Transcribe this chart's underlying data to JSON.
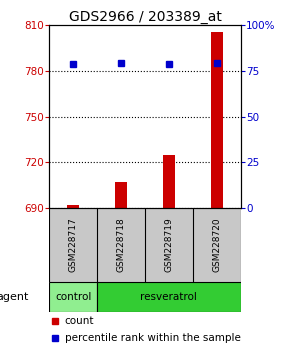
{
  "title": "GDS2966 / 203389_at",
  "samples": [
    "GSM228717",
    "GSM228718",
    "GSM228719",
    "GSM228720"
  ],
  "count_values": [
    692,
    707,
    725,
    805
  ],
  "percentile_values": [
    78.5,
    79.0,
    78.8,
    79.2
  ],
  "left_ylim": [
    690,
    810
  ],
  "left_yticks": [
    690,
    720,
    750,
    780,
    810
  ],
  "right_ylim": [
    0,
    100
  ],
  "right_yticks": [
    0,
    25,
    50,
    75,
    100
  ],
  "right_yticklabels": [
    "0",
    "25",
    "50",
    "75",
    "100%"
  ],
  "bar_color": "#cc0000",
  "dot_color": "#0000cc",
  "agent_label": "agent",
  "agent_groups": [
    {
      "label": "control",
      "span": 1,
      "color": "#90ee90"
    },
    {
      "label": "resveratrol",
      "span": 3,
      "color": "#33cc33"
    }
  ],
  "sample_box_color": "#c8c8c8",
  "dotted_line_color": "#000000",
  "title_fontsize": 10,
  "tick_fontsize": 7.5,
  "label_fontsize": 8,
  "legend_fontsize": 7.5,
  "bar_width": 0.25,
  "background_color": "#ffffff"
}
